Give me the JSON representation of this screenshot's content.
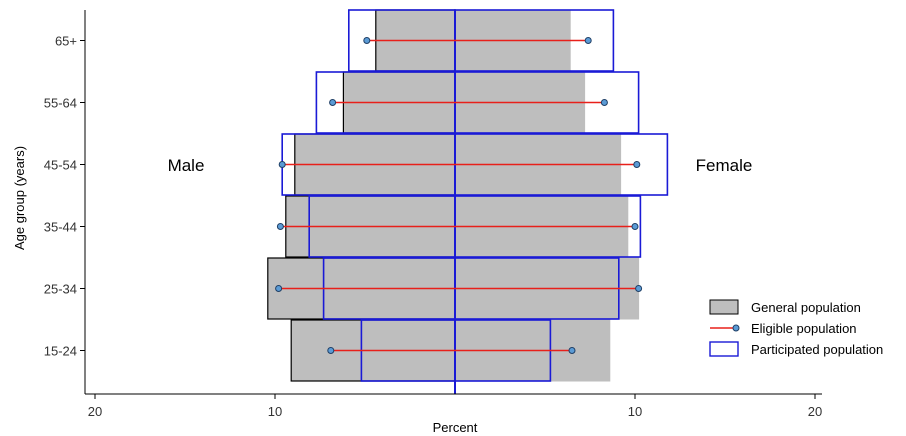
{
  "chart_data": {
    "type": "population-pyramid",
    "title": "",
    "xlabel": "Percent",
    "ylabel": "Age group (years)",
    "categories": [
      "15-24",
      "25-34",
      "35-44",
      "45-54",
      "55-64",
      "65+"
    ],
    "x_ticks": [
      {
        "value": -20,
        "label": "20"
      },
      {
        "value": -10,
        "label": "10"
      },
      {
        "value": 10,
        "label": "10"
      },
      {
        "value": 20,
        "label": "20"
      }
    ],
    "xlim": [
      -20,
      20
    ],
    "side_labels": {
      "left": "Male",
      "right": "Female"
    },
    "series": [
      {
        "name": "General population",
        "kind": "bar",
        "male": [
          9.1,
          10.4,
          9.4,
          8.9,
          6.2,
          4.4
        ],
        "female": [
          8.6,
          10.2,
          9.6,
          9.2,
          7.2,
          6.4
        ]
      },
      {
        "name": "Eligible population",
        "kind": "dumbbell",
        "male": [
          6.9,
          9.8,
          9.7,
          9.6,
          6.8,
          4.9
        ],
        "female": [
          6.5,
          10.2,
          10.0,
          10.1,
          8.3,
          7.4
        ]
      },
      {
        "name": "Participated population",
        "kind": "outline-bar",
        "male": [
          5.2,
          7.3,
          8.1,
          9.6,
          7.7,
          5.9
        ],
        "female": [
          5.3,
          9.1,
          10.3,
          11.8,
          10.2,
          8.8
        ]
      }
    ],
    "legend": {
      "position": "bottom-right",
      "items": [
        "General population",
        "Eligible population",
        "Participated population"
      ]
    },
    "colors": {
      "general_fill": "#bebebe",
      "general_stroke": "#000000",
      "eligible_line": "#e8201a",
      "eligible_point": "#5b9bd5",
      "participated_stroke": "#1a1ad6",
      "center_line": "#1a1ad6"
    }
  }
}
